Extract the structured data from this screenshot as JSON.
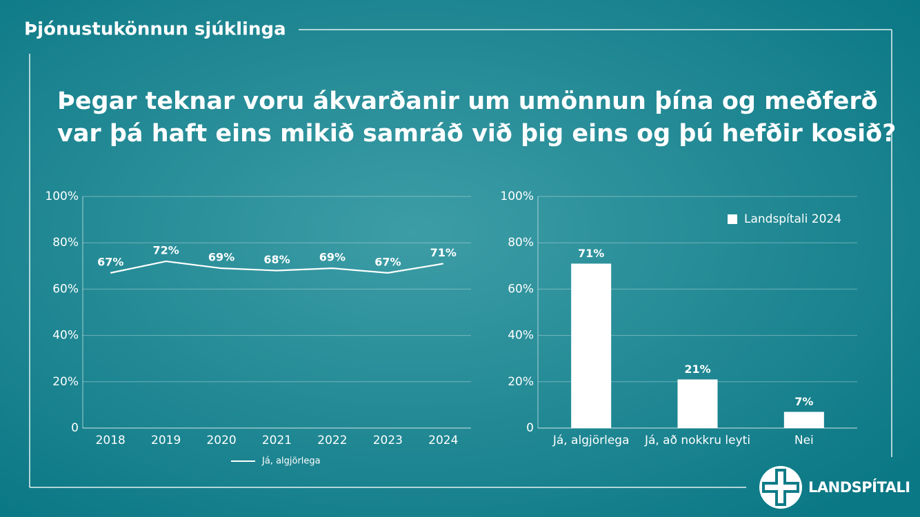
{
  "section_title": "Þjónustukönnun sjúklinga",
  "question_lines": [
    "Þegar teknar voru ákvarðanir um umönnun þína og meðferð",
    "var þá haft eins mikið samráð við þig eins og þú hefðir kosið?"
  ],
  "logo_text": "LANDSPÍTALI",
  "chart_data": [
    {
      "type": "line",
      "categories": [
        "2018",
        "2019",
        "2020",
        "2021",
        "2022",
        "2023",
        "2024"
      ],
      "series": [
        {
          "name": "Já, algjörlega",
          "color": "#ffffff",
          "values": [
            67,
            72,
            69,
            68,
            69,
            67,
            71
          ],
          "value_labels": [
            "67%",
            "72%",
            "69%",
            "68%",
            "69%",
            "67%",
            "71%"
          ]
        }
      ],
      "ylim": [
        0,
        100
      ],
      "yticks": [
        0,
        {
          "value": 20,
          "label": "20%"
        },
        {
          "value": 40,
          "label": "40%"
        },
        {
          "value": 60,
          "label": "60%"
        },
        {
          "value": 80,
          "label": "80%"
        },
        {
          "value": 100,
          "label": "100%"
        }
      ],
      "grid": true,
      "legend": "bottom"
    },
    {
      "type": "bar",
      "categories": [
        "Já, algjörlega",
        "Já, að nokkru leyti",
        "Nei"
      ],
      "series": [
        {
          "name": "Landspítali 2024",
          "color": "#ffffff",
          "values": [
            71,
            21,
            7
          ],
          "value_labels": [
            "71%",
            "21%",
            "7%"
          ]
        }
      ],
      "ylim": [
        0,
        100
      ],
      "yticks": [
        0,
        {
          "value": 20,
          "label": "20%"
        },
        {
          "value": 40,
          "label": "40%"
        },
        {
          "value": 60,
          "label": "60%"
        },
        {
          "value": 80,
          "label": "80%"
        },
        {
          "value": 100,
          "label": "100%"
        }
      ],
      "grid": true,
      "legend": "top-right"
    }
  ]
}
